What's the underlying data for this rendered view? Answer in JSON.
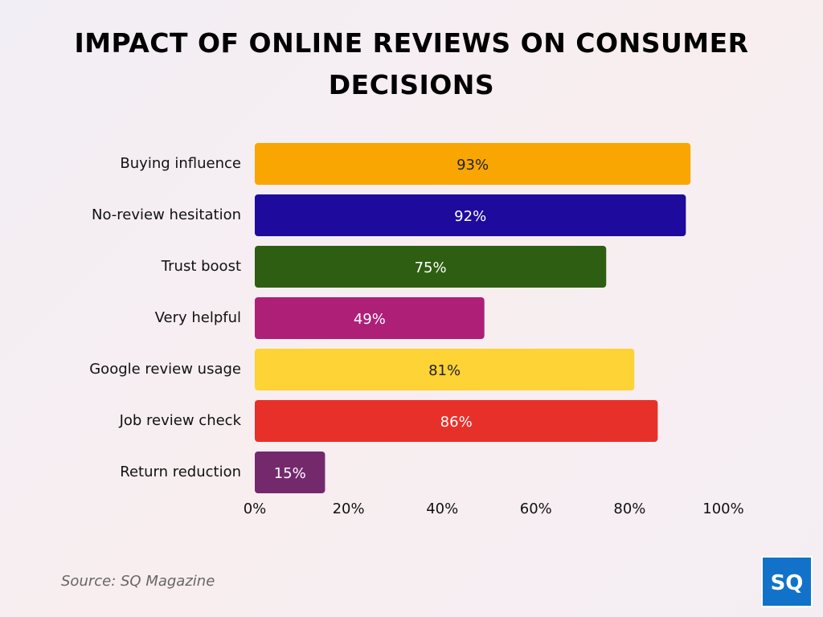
{
  "chart_data": {
    "type": "barh",
    "title": "IMPACT OF ONLINE REVIEWS ON CONSUMER DECISIONS",
    "categories": [
      "Buying influence",
      "No-review hesitation",
      "Trust boost",
      "Very helpful",
      "Google review usage",
      "Job review check",
      "Return reduction"
    ],
    "values": [
      93,
      92,
      75,
      49,
      81,
      86,
      15
    ],
    "value_labels": [
      "93%",
      "92%",
      "75%",
      "49%",
      "81%",
      "86%",
      "15%"
    ],
    "colors": [
      "#f9a602",
      "#1f0a9e",
      "#2e5e12",
      "#ae1f78",
      "#fdd335",
      "#e8302a",
      "#74296d"
    ],
    "xlim": [
      0,
      100
    ],
    "xticks": [
      {
        "value": 0,
        "label": "0%"
      },
      {
        "value": 20,
        "label": "20%"
      },
      {
        "value": 40,
        "label": "40%"
      },
      {
        "value": 60,
        "label": "60%"
      },
      {
        "value": 80,
        "label": "80%"
      },
      {
        "value": 100,
        "label": "100%"
      }
    ],
    "grid": false,
    "source": "Source: SQ Magazine"
  },
  "logo": "SQ"
}
